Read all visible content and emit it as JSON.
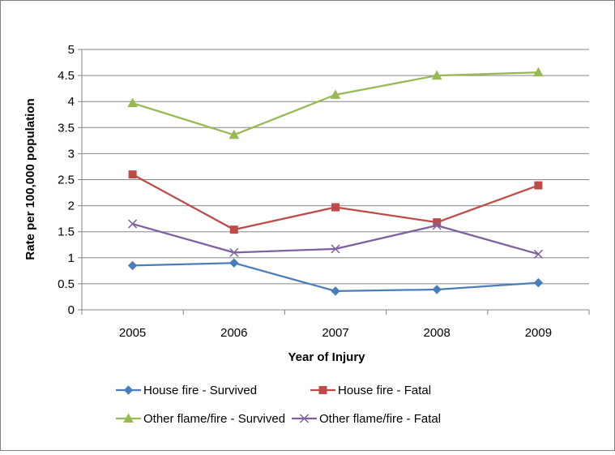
{
  "chart_data": {
    "type": "line",
    "title": "",
    "xlabel": "Year of Injury",
    "ylabel": "Rate per 100,000 population",
    "categories": [
      "2005",
      "2006",
      "2007",
      "2008",
      "2009"
    ],
    "ylim": [
      0,
      5
    ],
    "ytick_labels": [
      "0",
      "0.5",
      "1",
      "1.5",
      "2",
      "2.5",
      "3",
      "3.5",
      "4",
      "4.5",
      "5"
    ],
    "grid": "horizontal",
    "legend_position": "bottom",
    "series": [
      {
        "name": "House fire - Survived",
        "color": "#4a7ebb",
        "marker": "diamond",
        "values": [
          0.85,
          0.9,
          0.36,
          0.39,
          0.52
        ]
      },
      {
        "name": "House fire - Fatal",
        "color": "#be4b48",
        "marker": "square",
        "values": [
          2.6,
          1.54,
          1.97,
          1.68,
          2.39
        ]
      },
      {
        "name": "Other flame/fire - Survived",
        "color": "#98b954",
        "marker": "triangle",
        "values": [
          3.97,
          3.36,
          4.13,
          4.5,
          4.56
        ]
      },
      {
        "name": "Other flame/fire - Fatal",
        "color": "#7d60a0",
        "marker": "x",
        "values": [
          1.65,
          1.1,
          1.17,
          1.62,
          1.07
        ]
      }
    ]
  }
}
